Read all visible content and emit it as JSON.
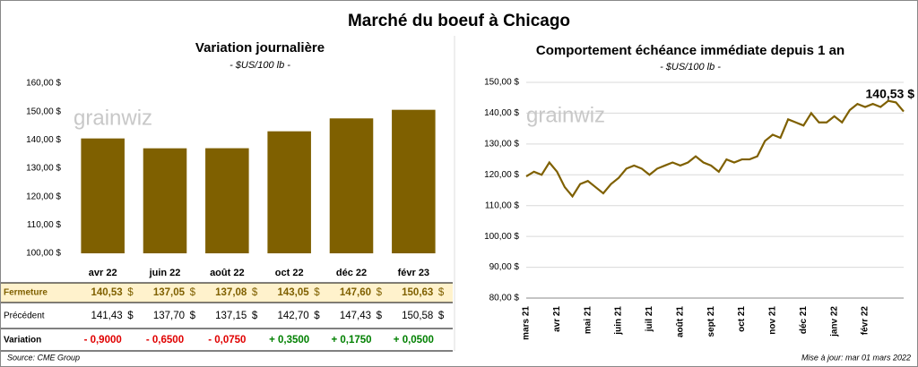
{
  "title": "Marché du boeuf à Chicago",
  "chart_data": [
    {
      "type": "bar",
      "title": "Variation journalière",
      "subtitle": "- $US/100 lb -",
      "watermark": "grainwiz",
      "categories": [
        "avr 22",
        "juin 22",
        "août 22",
        "oct 22",
        "déc 22",
        "févr 23"
      ],
      "values": [
        140.53,
        137.05,
        137.08,
        143.05,
        147.6,
        150.63
      ],
      "color": "#7f6000",
      "ylim": [
        100,
        160
      ],
      "yticks": [
        {
          "value": 100,
          "label": "100,00 $"
        },
        {
          "value": 110,
          "label": "110,00 $"
        },
        {
          "value": 120,
          "label": "120,00 $"
        },
        {
          "value": 130,
          "label": "130,00 $"
        },
        {
          "value": 140,
          "label": "140,00 $"
        },
        {
          "value": 150,
          "label": "150,00 $"
        },
        {
          "value": 160,
          "label": "160,00 $"
        }
      ]
    },
    {
      "type": "line",
      "title": "Comportement  échéance immédiate depuis 1 an",
      "subtitle": "- $US/100 lb -",
      "watermark": "grainwiz",
      "categories": [
        "mars 21",
        null,
        null,
        null,
        "avr 21",
        null,
        null,
        null,
        "mai 21",
        null,
        null,
        null,
        "juin 21",
        null,
        null,
        null,
        "juil 21",
        null,
        null,
        null,
        "août 21",
        null,
        null,
        null,
        "sept 21",
        null,
        null,
        null,
        "oct 21",
        null,
        null,
        null,
        "nov 21",
        null,
        null,
        null,
        "déc 21",
        null,
        null,
        null,
        "janv 22",
        null,
        null,
        null,
        "févr 22",
        null,
        null,
        null,
        null,
        null
      ],
      "values": [
        119.5,
        121,
        120,
        124,
        121,
        116,
        113,
        117,
        118,
        116,
        114,
        117,
        119,
        122,
        123,
        122,
        120,
        122,
        123,
        124,
        123,
        124,
        126,
        124,
        123,
        121,
        125,
        124,
        125,
        125,
        126,
        131,
        133,
        132,
        138,
        137,
        136,
        140,
        137,
        137,
        139,
        137,
        141,
        143,
        142,
        143,
        142,
        144,
        143.5,
        140.53
      ],
      "color": "#7f6000",
      "annotation": "140,53 $",
      "ylim": [
        80,
        150
      ],
      "yticks": [
        {
          "value": 80,
          "label": "80,00 $"
        },
        {
          "value": 90,
          "label": "90,00 $"
        },
        {
          "value": 100,
          "label": "100,00 $"
        },
        {
          "value": 110,
          "label": "110,00 $"
        },
        {
          "value": 120,
          "label": "120,00 $"
        },
        {
          "value": 130,
          "label": "130,00 $"
        },
        {
          "value": 140,
          "label": "140,00 $"
        },
        {
          "value": 150,
          "label": "150,00 $"
        }
      ]
    }
  ],
  "table": {
    "rows": [
      {
        "label": "Fermeture",
        "unit": "$",
        "cells": [
          "140,53",
          "137,05",
          "137,08",
          "143,05",
          "147,60",
          "150,63"
        ]
      },
      {
        "label": "Précédent",
        "unit": "$",
        "cells": [
          "141,43",
          "137,70",
          "137,15",
          "142,70",
          "147,43",
          "150,58"
        ]
      },
      {
        "label": "Variation",
        "cells": [
          "- 0,9000",
          "- 0,6500",
          "- 0,0750",
          "+ 0,3500",
          "+ 0,1750",
          "+ 0,0500"
        ]
      }
    ]
  },
  "source": "Source: CME Group",
  "updated": "Mise à jour: mar 01 mars 2022"
}
